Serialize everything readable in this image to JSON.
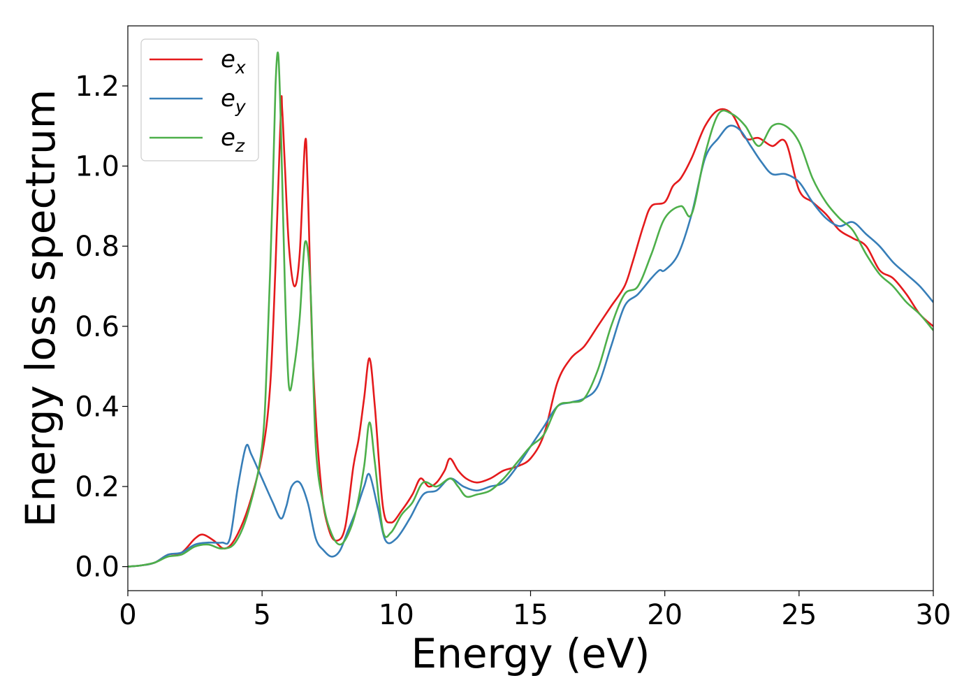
{
  "chart_data": {
    "type": "line",
    "xlabel": "Energy (eV)",
    "ylabel": "Energy loss spectrum",
    "xlim": [
      0,
      30
    ],
    "ylim": [
      -0.06,
      1.35
    ],
    "xticks": [
      0,
      5,
      10,
      15,
      20,
      25,
      30
    ],
    "yticks": [
      0.0,
      0.2,
      0.4,
      0.6,
      0.8,
      1.0,
      1.2
    ],
    "xtick_labels": [
      "0",
      "5",
      "10",
      "15",
      "20",
      "25",
      "30"
    ],
    "ytick_labels": [
      "0.0",
      "0.2",
      "0.4",
      "0.6",
      "0.8",
      "1.0",
      "1.2"
    ],
    "grid": false,
    "legend_position": "top-left",
    "series": [
      {
        "name": "e",
        "subscript": "x",
        "color": "#e41a1c",
        "x": [
          0,
          0.5,
          1.0,
          1.5,
          2.0,
          2.5,
          2.8,
          3.2,
          3.6,
          4.0,
          4.5,
          5.0,
          5.3,
          5.5,
          5.7,
          5.75,
          5.85,
          6.0,
          6.2,
          6.4,
          6.6,
          6.7,
          6.9,
          7.2,
          7.5,
          7.8,
          8.1,
          8.4,
          8.6,
          8.8,
          9.0,
          9.2,
          9.5,
          9.8,
          10.2,
          10.6,
          10.9,
          11.2,
          11.5,
          11.8,
          12.0,
          12.3,
          12.6,
          13.0,
          13.5,
          14.0,
          14.5,
          15.0,
          15.5,
          16.0,
          16.5,
          17.0,
          17.5,
          18.0,
          18.5,
          18.8,
          19.2,
          19.5,
          20.0,
          20.3,
          20.6,
          21.0,
          21.5,
          22.0,
          22.5,
          23.0,
          23.5,
          24.0,
          24.5,
          25.0,
          25.5,
          26.0,
          26.5,
          27.0,
          27.5,
          28.0,
          28.5,
          29.0,
          29.5,
          30.0
        ],
        "y": [
          0.0,
          0.003,
          0.01,
          0.03,
          0.035,
          0.07,
          0.08,
          0.065,
          0.045,
          0.07,
          0.15,
          0.28,
          0.45,
          0.75,
          1.14,
          1.14,
          1.0,
          0.8,
          0.7,
          0.78,
          1.06,
          0.95,
          0.5,
          0.2,
          0.09,
          0.065,
          0.1,
          0.25,
          0.32,
          0.42,
          0.52,
          0.4,
          0.15,
          0.11,
          0.14,
          0.18,
          0.22,
          0.2,
          0.21,
          0.24,
          0.27,
          0.24,
          0.22,
          0.21,
          0.22,
          0.24,
          0.25,
          0.27,
          0.33,
          0.46,
          0.52,
          0.55,
          0.6,
          0.65,
          0.7,
          0.76,
          0.85,
          0.9,
          0.91,
          0.95,
          0.97,
          1.02,
          1.1,
          1.14,
          1.13,
          1.07,
          1.07,
          1.05,
          1.06,
          0.94,
          0.91,
          0.88,
          0.84,
          0.82,
          0.8,
          0.74,
          0.72,
          0.68,
          0.63,
          0.6
        ]
      },
      {
        "name": "e",
        "subscript": "y",
        "color": "#377eb8",
        "x": [
          0,
          0.5,
          1.0,
          1.5,
          2.0,
          2.5,
          3.0,
          3.5,
          3.8,
          4.1,
          4.4,
          4.6,
          5.0,
          5.4,
          5.7,
          5.9,
          6.1,
          6.4,
          6.7,
          7.0,
          7.3,
          7.6,
          7.9,
          8.2,
          8.5,
          8.8,
          9.0,
          9.3,
          9.6,
          10.0,
          10.5,
          11.0,
          11.5,
          12.0,
          12.5,
          13.0,
          13.5,
          14.0,
          14.5,
          15.0,
          15.5,
          16.0,
          16.5,
          17.0,
          17.5,
          18.0,
          18.5,
          19.0,
          19.5,
          19.8,
          20.0,
          20.5,
          21.0,
          21.5,
          22.0,
          22.4,
          22.8,
          23.2,
          23.6,
          24.0,
          24.5,
          25.0,
          25.5,
          26.0,
          26.5,
          27.0,
          27.5,
          28.0,
          28.5,
          29.0,
          29.5,
          30.0
        ],
        "y": [
          0.0,
          0.003,
          0.01,
          0.03,
          0.035,
          0.055,
          0.06,
          0.06,
          0.07,
          0.2,
          0.3,
          0.28,
          0.22,
          0.16,
          0.12,
          0.15,
          0.2,
          0.21,
          0.16,
          0.07,
          0.04,
          0.025,
          0.04,
          0.09,
          0.14,
          0.2,
          0.23,
          0.15,
          0.065,
          0.07,
          0.12,
          0.18,
          0.19,
          0.22,
          0.2,
          0.19,
          0.2,
          0.21,
          0.25,
          0.3,
          0.35,
          0.4,
          0.41,
          0.42,
          0.45,
          0.55,
          0.65,
          0.68,
          0.72,
          0.74,
          0.74,
          0.78,
          0.88,
          1.02,
          1.07,
          1.1,
          1.09,
          1.05,
          1.01,
          0.98,
          0.98,
          0.96,
          0.91,
          0.87,
          0.85,
          0.86,
          0.83,
          0.8,
          0.76,
          0.73,
          0.7,
          0.66
        ]
      },
      {
        "name": "e",
        "subscript": "z",
        "color": "#4daf4a",
        "x": [
          0,
          0.5,
          1.0,
          1.5,
          2.0,
          2.5,
          3.0,
          3.5,
          4.0,
          4.5,
          5.0,
          5.2,
          5.4,
          5.5,
          5.6,
          5.7,
          5.85,
          6.0,
          6.2,
          6.4,
          6.6,
          6.8,
          7.0,
          7.3,
          7.6,
          7.9,
          8.2,
          8.5,
          8.8,
          9.0,
          9.2,
          9.5,
          9.8,
          10.2,
          10.6,
          11.0,
          11.5,
          12.0,
          12.3,
          12.6,
          13.0,
          13.5,
          14.0,
          14.5,
          15.0,
          15.5,
          16.0,
          16.5,
          17.0,
          17.5,
          18.0,
          18.5,
          19.0,
          19.5,
          20.0,
          20.6,
          21.0,
          21.5,
          22.0,
          22.5,
          23.0,
          23.5,
          24.0,
          24.5,
          25.0,
          25.5,
          26.0,
          26.5,
          27.0,
          27.5,
          28.0,
          28.5,
          29.0,
          29.5,
          30.0
        ],
        "y": [
          0.0,
          0.003,
          0.01,
          0.025,
          0.03,
          0.05,
          0.055,
          0.045,
          0.06,
          0.14,
          0.3,
          0.55,
          0.95,
          1.2,
          1.28,
          1.1,
          0.7,
          0.45,
          0.5,
          0.62,
          0.81,
          0.7,
          0.3,
          0.15,
          0.08,
          0.055,
          0.08,
          0.14,
          0.25,
          0.36,
          0.26,
          0.09,
          0.085,
          0.13,
          0.16,
          0.21,
          0.2,
          0.22,
          0.2,
          0.175,
          0.18,
          0.19,
          0.22,
          0.26,
          0.3,
          0.33,
          0.4,
          0.41,
          0.42,
          0.49,
          0.6,
          0.68,
          0.7,
          0.78,
          0.87,
          0.9,
          0.88,
          1.03,
          1.13,
          1.13,
          1.1,
          1.05,
          1.1,
          1.1,
          1.06,
          0.97,
          0.91,
          0.87,
          0.84,
          0.78,
          0.73,
          0.7,
          0.66,
          0.63,
          0.59
        ]
      }
    ]
  }
}
